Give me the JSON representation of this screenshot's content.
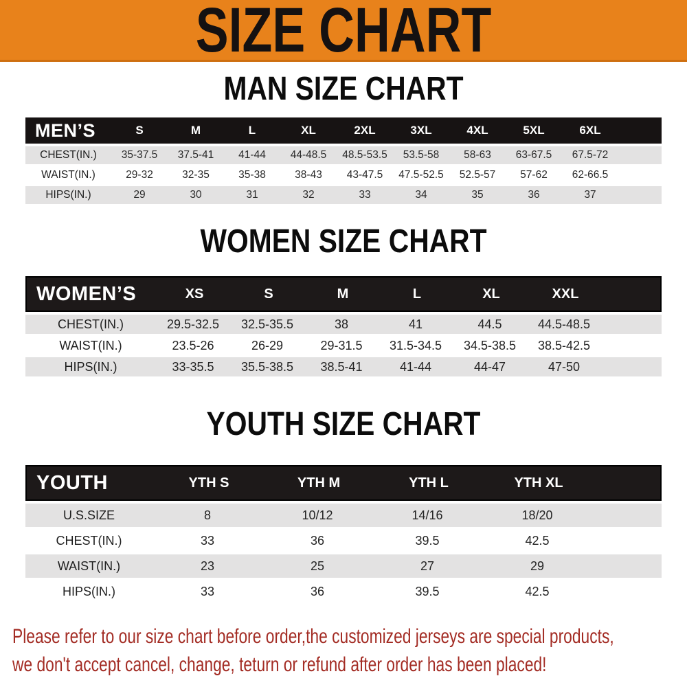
{
  "banner": {
    "title": "SIZE CHART"
  },
  "sections": {
    "men": {
      "heading": "MAN SIZE CHART",
      "header": {
        "label": "MEN’S",
        "cols": [
          "S",
          "M",
          "L",
          "XL",
          "2XL",
          "3XL",
          "4XL",
          "5XL",
          "6XL"
        ]
      },
      "rows": [
        {
          "label": "CHEST(IN.)",
          "values": [
            "35-37.5",
            "37.5-41",
            "41-44",
            "44-48.5",
            "48.5-53.5",
            "53.5-58",
            "58-63",
            "63-67.5",
            "67.5-72"
          ]
        },
        {
          "label": "WAIST(IN.)",
          "values": [
            "29-32",
            "32-35",
            "35-38",
            "38-43",
            "43-47.5",
            "47.5-52.5",
            "52.5-57",
            "57-62",
            "62-66.5"
          ]
        },
        {
          "label": "HIPS(IN.)",
          "values": [
            "29",
            "30",
            "31",
            "32",
            "33",
            "34",
            "35",
            "36",
            "37"
          ]
        }
      ]
    },
    "women": {
      "heading": "WOMEN SIZE CHART",
      "header": {
        "label": "WOMEN’S",
        "cols": [
          "XS",
          "S",
          "M",
          "L",
          "XL",
          "XXL"
        ]
      },
      "rows": [
        {
          "label": "CHEST(IN.)",
          "values": [
            "29.5-32.5",
            "32.5-35.5",
            "38",
            "41",
            "44.5",
            "44.5-48.5"
          ]
        },
        {
          "label": "WAIST(IN.)",
          "values": [
            "23.5-26",
            "26-29",
            "29-31.5",
            "31.5-34.5",
            "34.5-38.5",
            "38.5-42.5"
          ]
        },
        {
          "label": "HIPS(IN.)",
          "values": [
            "33-35.5",
            "35.5-38.5",
            "38.5-41",
            "41-44",
            "44-47",
            "47-50"
          ]
        }
      ]
    },
    "youth": {
      "heading": "YOUTH SIZE CHART",
      "header": {
        "label": "YOUTH",
        "cols": [
          "YTH S",
          "YTH M",
          "YTH L",
          "YTH XL"
        ]
      },
      "rows": [
        {
          "label": "U.S.SIZE",
          "values": [
            "8",
            "10/12",
            "14/16",
            "18/20"
          ]
        },
        {
          "label": "CHEST(IN.)",
          "values": [
            "33",
            "36",
            "39.5",
            "42.5"
          ]
        },
        {
          "label": "WAIST(IN.)",
          "values": [
            "23",
            "25",
            "27",
            "29"
          ]
        },
        {
          "label": "HIPS(IN.)",
          "values": [
            "33",
            "36",
            "39.5",
            "42.5"
          ]
        }
      ]
    }
  },
  "footer": {
    "line1": "Please refer to our size chart before order,the customized jerseys are special products,",
    "line2": "we don't accept cancel, change, teturn or refund after order has been placed!"
  },
  "colors": {
    "banner-bg": "#E8821B",
    "banner-border": "#CE6F10",
    "header-black": "#171313",
    "row-gray": "#E3E2E2",
    "footer-red": "#A32C24"
  }
}
